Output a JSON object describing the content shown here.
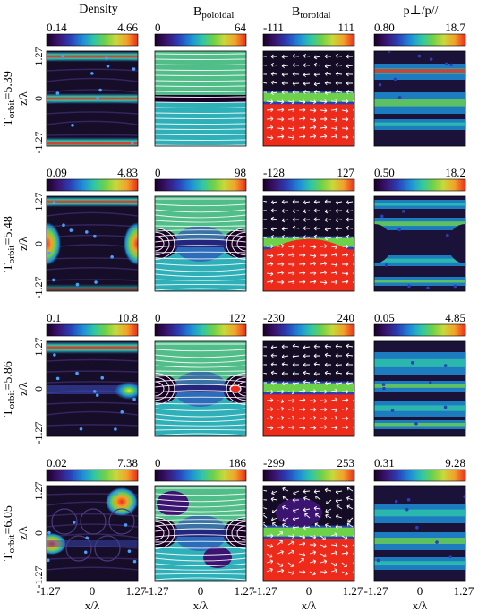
{
  "columns": [
    {
      "title": "Density",
      "title_main": "",
      "title_sub": "",
      "cb_min": "0.14",
      "cb_max": "4.66"
    },
    {
      "title": "",
      "title_main": "B",
      "title_sub": "poloidal",
      "cb_min": "0",
      "cb_max": "64"
    },
    {
      "title": "",
      "title_main": "B",
      "title_sub": "toroidal",
      "cb_min": "-111",
      "cb_max": "111"
    },
    {
      "title": "p⊥/p//",
      "title_main": "",
      "title_sub": "",
      "cb_min": "0.80",
      "cb_max": "18.7"
    }
  ],
  "rows": [
    {
      "label_main": "T",
      "label_sub": "orbit",
      "label_val": "=5.39",
      "colorbars": [
        {
          "min": "0.14",
          "max": "4.66"
        },
        {
          "min": "0",
          "max": "64"
        },
        {
          "min": "-111",
          "max": "111"
        },
        {
          "min": "0.80",
          "max": "18.7"
        }
      ]
    },
    {
      "label_main": "T",
      "label_sub": "orbit",
      "label_val": "=5.48",
      "colorbars": [
        {
          "min": "0.09",
          "max": "4.83"
        },
        {
          "min": "0",
          "max": "98"
        },
        {
          "min": "-128",
          "max": "127"
        },
        {
          "min": "0.50",
          "max": "18.2"
        }
      ]
    },
    {
      "label_main": "T",
      "label_sub": "orbit",
      "label_val": "=5.86",
      "colorbars": [
        {
          "min": "0.1",
          "max": "10.8"
        },
        {
          "min": "0",
          "max": "122"
        },
        {
          "min": "-230",
          "max": "240"
        },
        {
          "min": "0.05",
          "max": "4.85"
        }
      ]
    },
    {
      "label_main": "T",
      "label_sub": "orbit",
      "label_val": "=6.05",
      "colorbars": [
        {
          "min": "0.02",
          "max": "7.38"
        },
        {
          "min": "0",
          "max": "186"
        },
        {
          "min": "-299",
          "max": "253"
        },
        {
          "min": "0.31",
          "max": "9.28"
        }
      ]
    }
  ],
  "axes": {
    "ylabel": "z/λ",
    "xlabel": "x/λ",
    "yticks": [
      "1.27",
      "0",
      "-1.27"
    ],
    "xticks": [
      "-1.27",
      "0",
      "1.27"
    ]
  },
  "colors": {
    "colormap": [
      "#1a0026",
      "#3a1470",
      "#2b3fb8",
      "#1e8fd8",
      "#2fc6a8",
      "#6ed14a",
      "#c9d83a",
      "#f2a22a",
      "#ee2a1a"
    ],
    "panel_dark": "#140c24",
    "panel_mid": "#4a2f86"
  }
}
